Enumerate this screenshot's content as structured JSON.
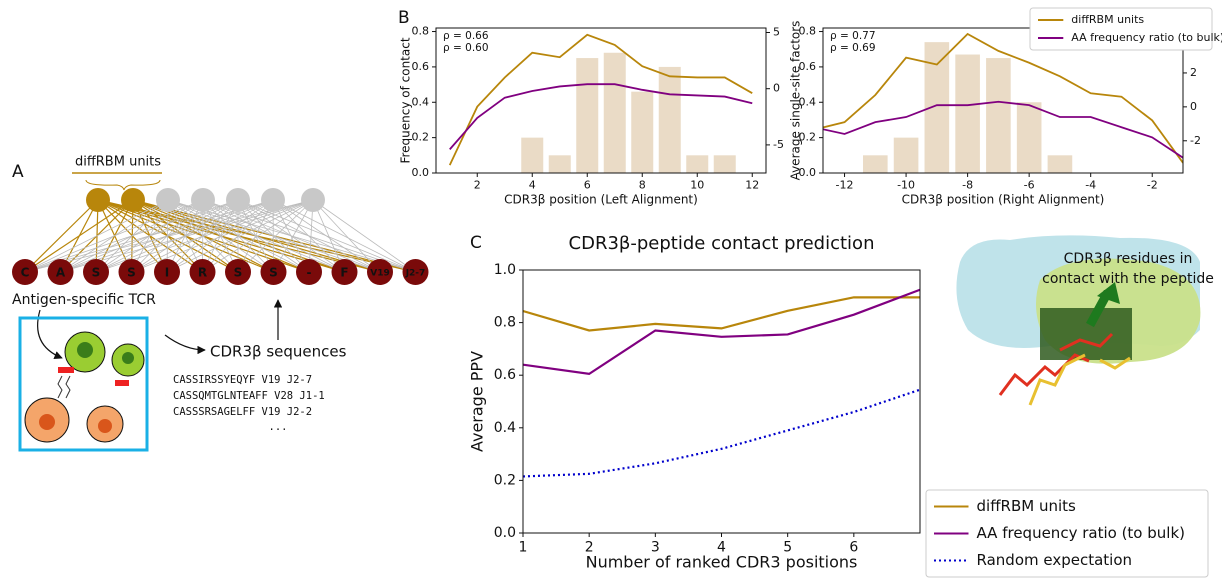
{
  "chart_data": [
    {
      "type": "combo",
      "panel": "B",
      "x": [
        1,
        2,
        3,
        4,
        5,
        6,
        7,
        8,
        9,
        10,
        11,
        12
      ],
      "xlim": [
        0.5,
        12.5
      ],
      "xticks": [
        2,
        4,
        6,
        8,
        10,
        12
      ],
      "ylim": [
        0,
        0.82
      ],
      "yticks": [
        {
          "value": 0,
          "label": "0.0"
        },
        0.2,
        0.4,
        0.6,
        0.8
      ],
      "y2lim": [
        -7.5,
        5.4
      ],
      "y2ticks": [
        -5,
        0,
        5
      ],
      "xlabel": "CDR3β position (Left Alignment)",
      "ylabel": "Frequency of contact",
      "y2label": "Average single-site factors",
      "bars": {
        "color": "#eadbc6",
        "values": [
          null,
          null,
          null,
          0.2,
          0.1,
          0.65,
          0.68,
          0.46,
          0.6,
          0.1,
          0.1,
          null
        ]
      },
      "series": [
        {
          "name": "diffRBM units",
          "color": "#b8860b",
          "axis": "y2",
          "values": [
            -6.8,
            -1.6,
            1.0,
            3.2,
            2.8,
            4.8,
            3.9,
            2.0,
            1.1,
            1.0,
            1.0,
            -0.4
          ]
        },
        {
          "name": "AA frequency ratio (to bulk)",
          "color": "#800080",
          "axis": "y2",
          "values": [
            -5.4,
            -2.6,
            -0.8,
            -0.2,
            0.2,
            0.4,
            0.4,
            -0.1,
            -0.5,
            -0.6,
            -0.7,
            -1.3
          ]
        }
      ],
      "annotations": [
        {
          "text": "ρ = 0.66",
          "color": "#b8860b"
        },
        {
          "text": "ρ = 0.60",
          "color": "#800080"
        }
      ]
    },
    {
      "type": "combo",
      "x": [
        -13,
        -12,
        -11,
        -10,
        -9,
        -8,
        -7,
        -6,
        -5,
        -4,
        -3,
        -2,
        -1
      ],
      "xlim": [
        -12.7,
        -1
      ],
      "xticks": [
        -12,
        -10,
        -8,
        -6,
        -4,
        -2
      ],
      "ylim": [
        0,
        0.82
      ],
      "yticks": [
        {
          "value": 0,
          "label": "0.0"
        },
        0.2,
        0.4,
        0.6,
        0.8
      ],
      "y2lim": [
        -3.9,
        4.65
      ],
      "y2ticks": [
        -2,
        0,
        2
      ],
      "xlabel": "CDR3β position (Right Alignment)",
      "bars": {
        "color": "#eadbc6",
        "values": [
          null,
          null,
          0.1,
          0.2,
          0.74,
          0.67,
          0.65,
          0.4,
          0.1,
          null,
          null,
          null,
          null
        ]
      },
      "series": [
        {
          "name": "diffRBM units",
          "color": "#b8860b",
          "axis": "y2",
          "values": [
            -1.35,
            -0.9,
            0.7,
            2.9,
            2.5,
            4.3,
            3.3,
            2.6,
            1.8,
            0.8,
            0.6,
            -0.8,
            -3.3
          ]
        },
        {
          "name": "AA frequency ratio (to bulk)",
          "color": "#800080",
          "axis": "y2",
          "values": [
            -1.2,
            -1.6,
            -0.9,
            -0.6,
            0.1,
            0.1,
            0.3,
            0.1,
            -0.6,
            -0.6,
            -1.2,
            -1.8,
            -3.0
          ]
        }
      ],
      "annotations": [
        {
          "text": "ρ = 0.77",
          "color": "#b8860b"
        },
        {
          "text": "ρ = 0.69",
          "color": "#800080"
        }
      ],
      "legend": "upper right"
    },
    {
      "type": "line",
      "panel": "C",
      "title": "CDR3β-peptide contact prediction",
      "x": [
        1,
        2,
        3,
        4,
        5,
        6,
        7
      ],
      "xlim": [
        1,
        7
      ],
      "xticks": [
        1,
        2,
        3,
        4,
        5,
        6
      ],
      "ylim": [
        0,
        1
      ],
      "yticks": [
        {
          "value": 0,
          "label": "0.0"
        },
        0.2,
        0.4,
        0.6,
        0.8,
        {
          "value": 1,
          "label": "1.0"
        }
      ],
      "xlabel": "Number of ranked CDR3 positions",
      "ylabel": "Average PPV",
      "series": [
        {
          "name": "diffRBM units",
          "color": "#b8860b",
          "values": [
            0.844,
            0.77,
            0.795,
            0.778,
            0.845,
            0.896,
            0.896
          ]
        },
        {
          "name": "AA frequency ratio (to bulk)",
          "color": "#800080",
          "values": [
            0.64,
            0.605,
            0.77,
            0.746,
            0.755,
            0.83,
            0.925
          ]
        },
        {
          "name": "Random expectation",
          "color": "#0000cc",
          "linestyle": "dotted",
          "values": [
            0.215,
            0.225,
            0.265,
            0.32,
            0.39,
            0.46,
            0.545
          ]
        }
      ],
      "legend": "outside lower right"
    }
  ],
  "diagram": {
    "label": "A",
    "units_label": "diffRBM units",
    "residues": [
      "C",
      "A",
      "S",
      "S",
      "I",
      "R",
      "S",
      "S",
      "-",
      "F",
      "V19",
      "J2-7"
    ],
    "tcr_label": "Antigen-specific TCR",
    "sequences_label": "CDR3β sequences",
    "sequences": [
      "CASSIRSSYEQYF V19 J2-7",
      "CASSQMTGLNTEAFF V28 J1-1",
      "CASSSRSAGELFF V19 J2-2"
    ],
    "ellipsis": "..."
  },
  "structure": {
    "annotation": [
      "CDR3β residues in",
      "contact with the peptide"
    ]
  }
}
